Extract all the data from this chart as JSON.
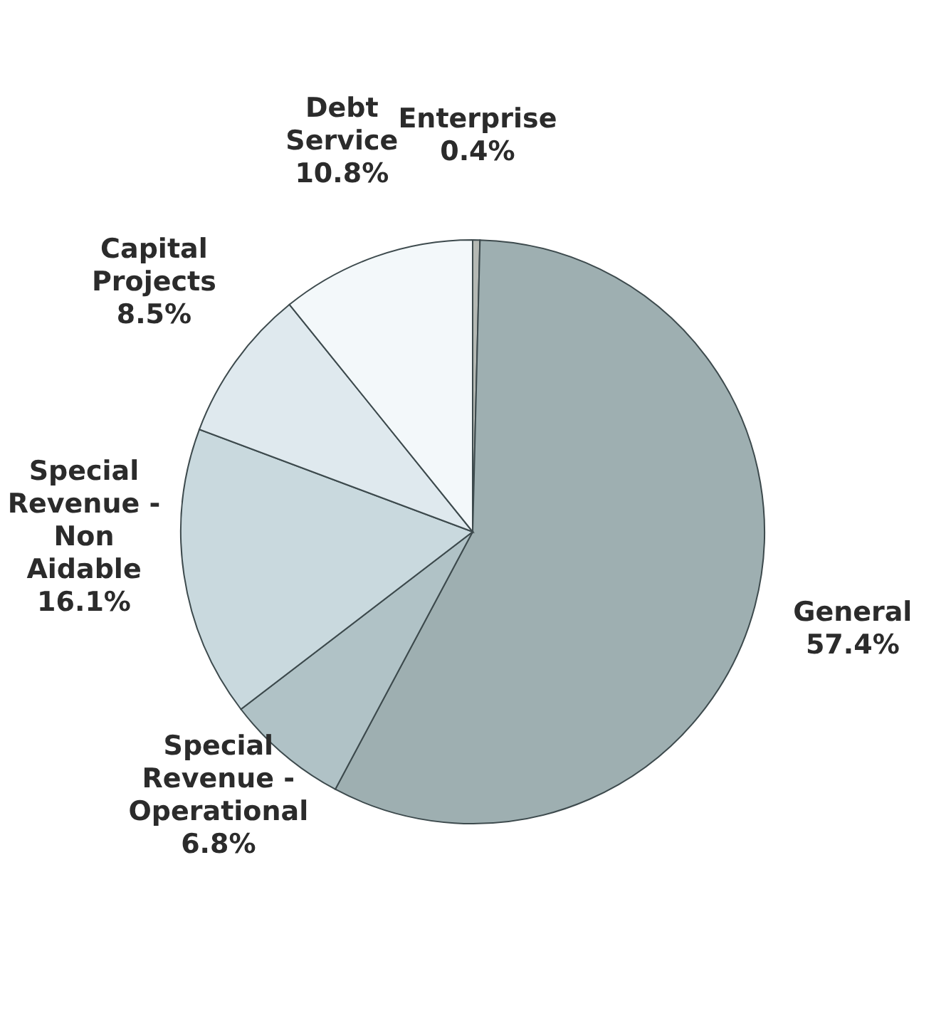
{
  "chart_data": {
    "type": "pie",
    "categories": [
      "Enterprise",
      "General",
      "Special Revenue - Operational",
      "Special Revenue - Non Aidable",
      "Capital Projects",
      "Debt Service"
    ],
    "values": [
      0.4,
      57.4,
      6.8,
      16.1,
      8.5,
      10.8
    ],
    "colors": [
      "#b5b9b4",
      "#9eafb1",
      "#b0c2c6",
      "#c9d9de",
      "#dfe9ee",
      "#f3f8fa"
    ],
    "value_labels": [
      "0.4%",
      "57.4%",
      "6.8%",
      "16.1%",
      "8.5%",
      "10.8%"
    ],
    "legend": false
  }
}
